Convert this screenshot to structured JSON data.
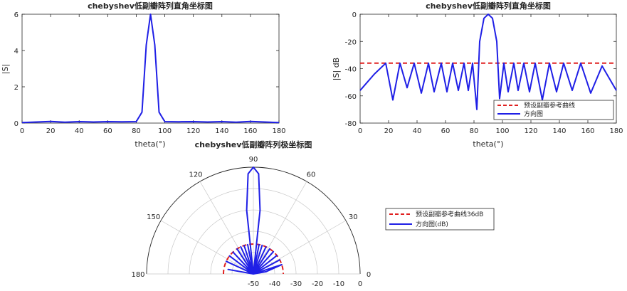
{
  "colors": {
    "curve": "#1f1fe6",
    "reference": "#e02020",
    "axis": "#262626",
    "grid": "#c8c8c8"
  },
  "chart_data": [
    {
      "type": "line",
      "title": "chebyshev低副瓣阵列直角坐标图",
      "xlabel": "theta(°)",
      "ylabel": "|S|",
      "xlim": [
        0,
        180
      ],
      "ylim": [
        0,
        6
      ],
      "xticks": [
        0,
        20,
        40,
        60,
        80,
        100,
        120,
        140,
        160,
        180
      ],
      "yticks": [
        0,
        2,
        4,
        6
      ],
      "grid": false,
      "series": [
        {
          "name": "",
          "x": [
            0,
            10,
            20,
            30,
            40,
            50,
            60,
            70,
            80,
            84,
            87,
            90,
            93,
            96,
            100,
            110,
            120,
            130,
            140,
            150,
            160,
            170,
            180
          ],
          "y": [
            0.03,
            0.06,
            0.09,
            0.05,
            0.08,
            0.06,
            0.08,
            0.07,
            0.08,
            0.6,
            4.3,
            6.0,
            4.3,
            0.6,
            0.08,
            0.07,
            0.08,
            0.06,
            0.08,
            0.05,
            0.09,
            0.06,
            0.03
          ]
        }
      ]
    },
    {
      "type": "line",
      "title": "chebyshev低副瓣阵列直角坐标图",
      "xlabel": "theta(°)",
      "ylabel": "|S| dB",
      "xlim": [
        0,
        180
      ],
      "ylim": [
        -80,
        0
      ],
      "xticks": [
        0,
        20,
        40,
        60,
        80,
        100,
        120,
        140,
        160,
        180
      ],
      "yticks": [
        0,
        -20,
        -40,
        -60,
        -80
      ],
      "grid": false,
      "legend": {
        "position": "bottom-right",
        "entries": [
          "预设副瓣参考曲线",
          "方向图"
        ]
      },
      "series": [
        {
          "name": "预设副瓣参考曲线",
          "style": "dashed",
          "x": [
            0,
            180
          ],
          "y": [
            -36,
            -36
          ]
        },
        {
          "name": "方向图",
          "style": "solid",
          "x": [
            0,
            10,
            18,
            23,
            28,
            33,
            38,
            43,
            48,
            52,
            57,
            61,
            65,
            69,
            73,
            76,
            79,
            82,
            84,
            87,
            90,
            93,
            96,
            98,
            101,
            104,
            108,
            111,
            115,
            119,
            123,
            128,
            133,
            138,
            143,
            149,
            155,
            162,
            170,
            180
          ],
          "y": [
            -56,
            -44,
            -36,
            -63,
            -36,
            -54,
            -36,
            -58,
            -36,
            -57,
            -36,
            -57,
            -36,
            -56,
            -36,
            -56,
            -36,
            -70,
            -20,
            -3,
            0,
            -3,
            -20,
            -62,
            -36,
            -57,
            -36,
            -56,
            -36,
            -57,
            -36,
            -63,
            -36,
            -57,
            -36,
            -56,
            -36,
            -58,
            -38,
            -56
          ]
        }
      ]
    },
    {
      "type": "polar",
      "title": "chebyshev低副瓣阵列极坐标图",
      "angle_ticks": [
        "0",
        "30",
        "60",
        "90",
        "120",
        "150",
        "180"
      ],
      "radial_ticks": [
        "-50",
        "-40",
        "-30",
        "-20",
        "-10",
        "0"
      ],
      "rlim_db": [
        -50,
        0
      ],
      "legend": {
        "position": "right",
        "entries": [
          "预设副瓣参考曲线36dB",
          "方向图(dB)"
        ]
      },
      "series": [
        {
          "name": "预设副瓣参考曲线36dB",
          "style": "dashed",
          "level_db": -36
        },
        {
          "name": "方向图(dB)",
          "style": "solid",
          "theta": [
            0,
            10,
            18,
            23,
            28,
            33,
            38,
            43,
            48,
            52,
            57,
            61,
            65,
            69,
            73,
            76,
            79,
            82,
            84,
            87,
            90,
            93,
            96,
            98,
            101,
            104,
            108,
            111,
            115,
            119,
            123,
            128,
            133,
            138,
            143,
            149,
            155,
            162,
            170,
            180
          ],
          "db": [
            -50,
            -44,
            -36,
            -50,
            -36,
            -50,
            -36,
            -50,
            -36,
            -50,
            -36,
            -50,
            -36,
            -50,
            -36,
            -50,
            -36,
            -50,
            -20,
            -3,
            0,
            -3,
            -20,
            -50,
            -36,
            -50,
            -36,
            -50,
            -36,
            -50,
            -36,
            -50,
            -36,
            -50,
            -36,
            -50,
            -36,
            -50,
            -38,
            -50
          ]
        }
      ]
    }
  ]
}
